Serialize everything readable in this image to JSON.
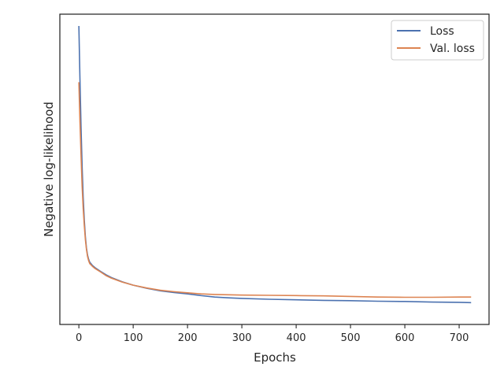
{
  "chart_data": {
    "type": "line",
    "title": "",
    "xlabel": "Epochs",
    "ylabel": "Negative log-likelihood",
    "xlim": [
      -35,
      755
    ],
    "ylim": [
      0,
      1
    ],
    "x_ticks": [
      0,
      100,
      200,
      300,
      400,
      500,
      600,
      700
    ],
    "y_ticks_shown": false,
    "grid": false,
    "legend": {
      "position": "top-right"
    },
    "x": [
      0,
      2,
      4,
      6,
      8,
      10,
      12,
      14,
      16,
      18,
      20,
      25,
      30,
      40,
      50,
      60,
      80,
      100,
      125,
      150,
      175,
      200,
      225,
      250,
      275,
      300,
      350,
      400,
      450,
      500,
      550,
      600,
      650,
      700,
      722
    ],
    "series": [
      {
        "name": "Loss",
        "color": "#4c72b0",
        "values": [
          1.0,
          0.81,
          0.64,
          0.5,
          0.39,
          0.31,
          0.25,
          0.21,
          0.185,
          0.17,
          0.16,
          0.148,
          0.14,
          0.127,
          0.115,
          0.105,
          0.09,
          0.078,
          0.067,
          0.058,
          0.052,
          0.047,
          0.041,
          0.036,
          0.033,
          0.031,
          0.028,
          0.026,
          0.024,
          0.023,
          0.021,
          0.02,
          0.018,
          0.017,
          0.016
        ]
      },
      {
        "name": "Val. loss",
        "color": "#dd8452",
        "values": [
          0.8,
          0.66,
          0.54,
          0.43,
          0.35,
          0.29,
          0.24,
          0.205,
          0.18,
          0.165,
          0.155,
          0.145,
          0.137,
          0.125,
          0.112,
          0.103,
          0.089,
          0.078,
          0.068,
          0.06,
          0.055,
          0.051,
          0.047,
          0.045,
          0.044,
          0.043,
          0.042,
          0.041,
          0.04,
          0.038,
          0.036,
          0.035,
          0.035,
          0.036,
          0.036
        ]
      }
    ]
  }
}
